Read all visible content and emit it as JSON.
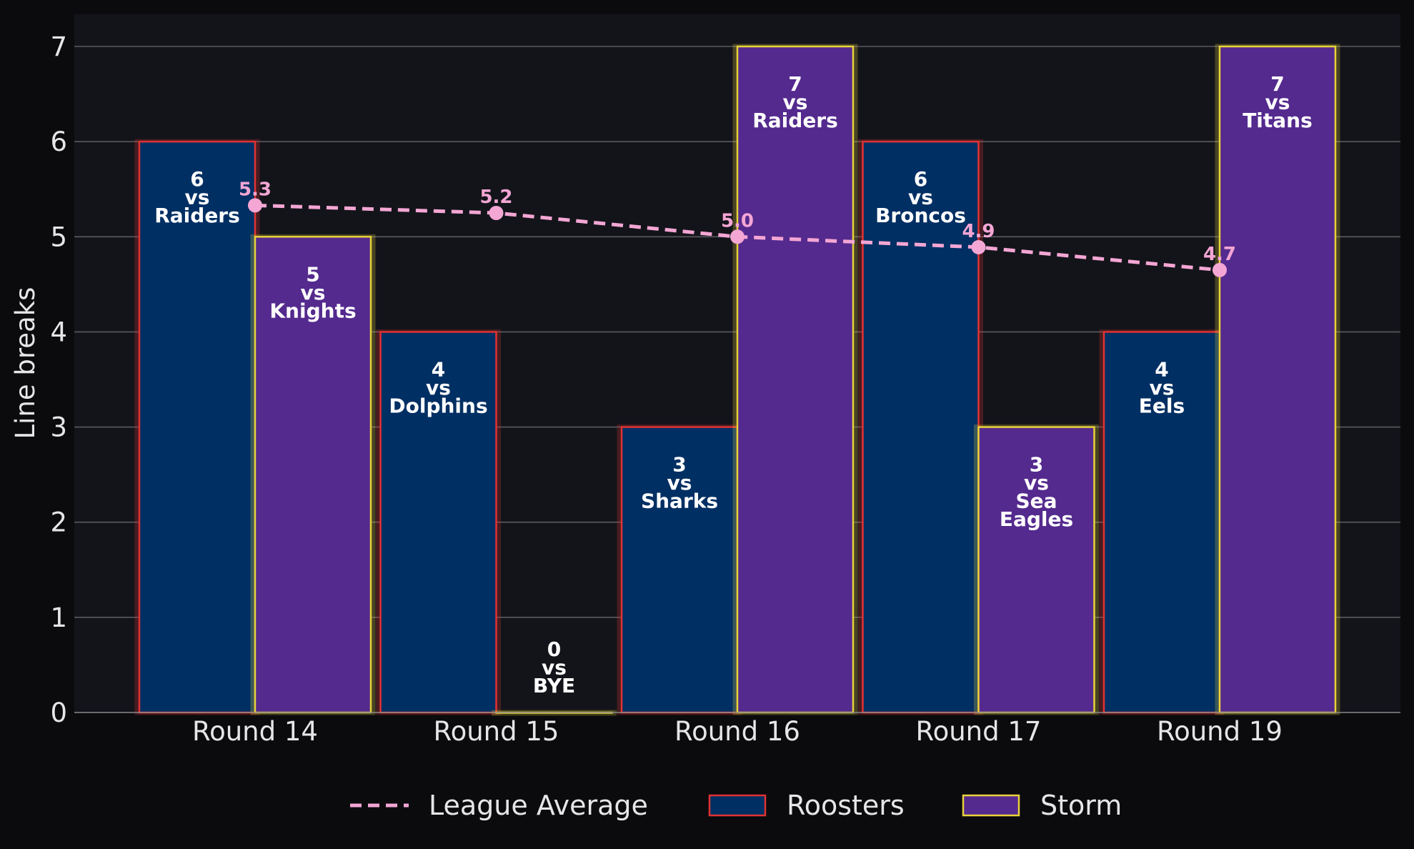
{
  "chart_data": {
    "type": "bar",
    "ylabel": "Line breaks",
    "ylim": [
      0,
      7
    ],
    "yticks": [
      "0",
      "1",
      "2",
      "3",
      "4",
      "5",
      "6",
      "7"
    ],
    "grid": true,
    "legend_position": "bottom-center",
    "categories": [
      "Round 14",
      "Round 15",
      "Round 16",
      "Round 17",
      "Round 19"
    ],
    "series": [
      {
        "name": "Roosters",
        "values": [
          6,
          4,
          3,
          6,
          4
        ],
        "labels": [
          [
            "6",
            "vs",
            "Raiders"
          ],
          [
            "4",
            "vs",
            "Dolphins"
          ],
          [
            "3",
            "vs",
            "Sharks"
          ],
          [
            "6",
            "vs",
            "Broncos"
          ],
          [
            "4",
            "vs",
            "Eels"
          ]
        ]
      },
      {
        "name": "Storm",
        "values": [
          5,
          0,
          7,
          3,
          7
        ],
        "labels": [
          [
            "5",
            "vs",
            "Knights"
          ],
          [
            "0",
            "vs",
            "BYE"
          ],
          [
            "7",
            "vs",
            "Raiders"
          ],
          [
            "3",
            "vs",
            "Sea",
            "Eagles"
          ],
          [
            "7",
            "vs",
            "Titans"
          ]
        ]
      }
    ],
    "line": {
      "name": "League Average",
      "values": [
        5.33,
        5.25,
        5.0,
        4.89,
        4.65
      ],
      "labels": [
        "5.3",
        "5.2",
        "5.0",
        "4.9",
        "4.7"
      ]
    },
    "colors": {
      "background": "#0b0b0e",
      "plot_background": "#13141a",
      "grid": "#5a5a5e",
      "roosters_fill": "#002f63",
      "roosters_edge": "#e23232",
      "storm_fill": "#542a8e",
      "storm_edge": "#e8d23a",
      "average_line": "#f4a6d4",
      "text": "#e6e6e6"
    }
  }
}
